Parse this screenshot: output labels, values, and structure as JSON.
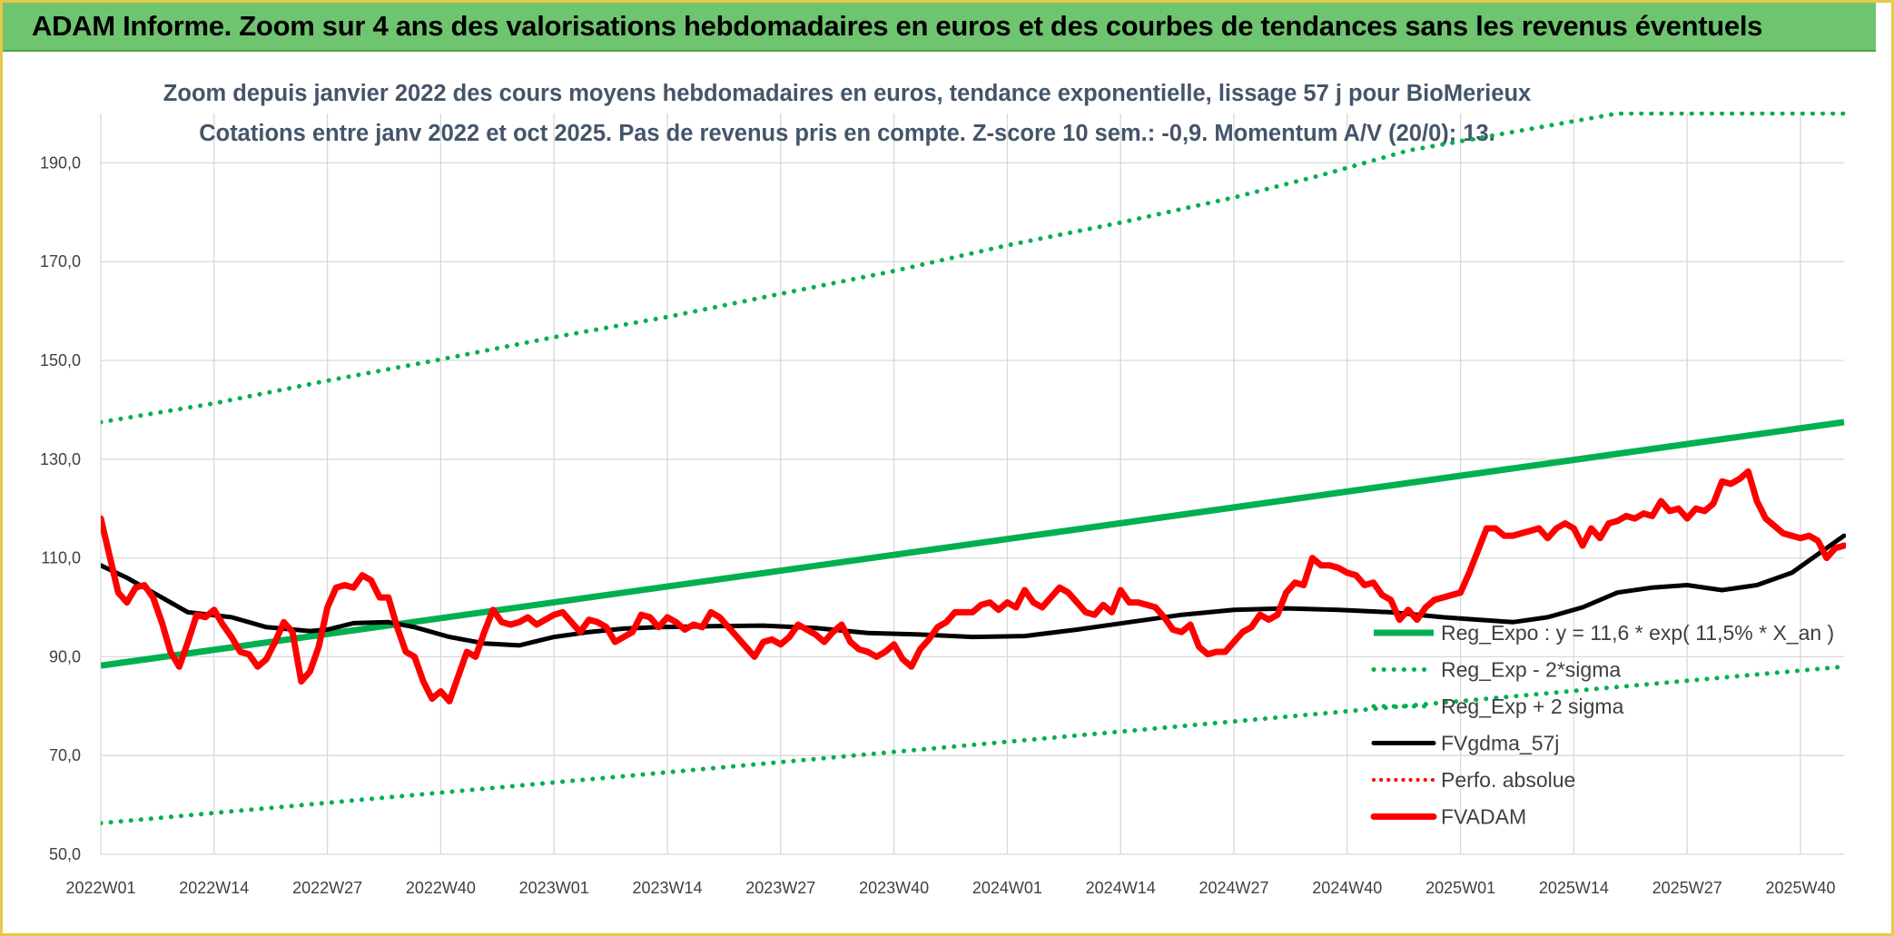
{
  "banner": {
    "title": "ADAM Informe. Zoom sur 4 ans des valorisations hebdomadaires en euros et des courbes de tendances sans les revenus éventuels"
  },
  "colors": {
    "banner": "#6fc46f",
    "reg_expo": "#00b050",
    "fvgdma": "#000000",
    "perfo": "#ff0000",
    "fvadam": "#ff0000",
    "grid": "#d9d9d9"
  },
  "chart_data": {
    "type": "line",
    "title": "Zoom depuis janvier 2022 des cours moyens hebdomadaires en euros, tendance exponentielle, lissage 57 j pour BioMerieux",
    "subtitle": "Cotations entre janv 2022 et oct 2025. Pas de revenus pris en compte. Z-score 10 sem.: -0,9. Momentum A/V (20/0): 13.",
    "ylim": [
      50,
      200
    ],
    "y_ticks": [
      "50,0",
      "70,0",
      "90,0",
      "110,0",
      "130,0",
      "150,0",
      "170,0",
      "190,0"
    ],
    "x_tick_labels": [
      "2022W01",
      "2022W14",
      "2022W27",
      "2022W40",
      "2023W01",
      "2023W14",
      "2023W27",
      "2023W40",
      "2024W01",
      "2024W14",
      "2024W27",
      "2024W40",
      "2025W01",
      "2025W14",
      "2025W27",
      "2025W40"
    ],
    "x_tick_index": [
      0,
      13,
      26,
      39,
      52,
      65,
      78,
      91,
      104,
      117,
      130,
      143,
      156,
      169,
      182,
      195
    ],
    "n_weeks": 200,
    "legend_position": "right",
    "grid": true,
    "series": [
      {
        "name": "Reg_Expo : y = 11,6 * exp( 11,5% *  X_an )",
        "style": "solid",
        "points": [
          [
            0,
            88.2
          ],
          [
            200,
            137.5
          ]
        ]
      },
      {
        "name": "Reg_Exp - 2*sigma",
        "style": "dotted",
        "points": [
          [
            0,
            56.3
          ],
          [
            200,
            88.0
          ]
        ]
      },
      {
        "name": "Reg_Exp + 2 sigma",
        "style": "dotted",
        "points": [
          [
            0,
            137.5
          ],
          [
            13,
            141.3
          ],
          [
            26,
            145.9
          ],
          [
            39,
            150.2
          ],
          [
            52,
            154.7
          ],
          [
            65,
            158.8
          ],
          [
            78,
            163.5
          ],
          [
            91,
            168.1
          ],
          [
            104,
            173.3
          ],
          [
            117,
            177.9
          ],
          [
            130,
            183.0
          ],
          [
            140,
            187.5
          ],
          [
            150,
            192.5
          ],
          [
            174,
            200
          ],
          [
            200,
            200
          ]
        ]
      },
      {
        "name": "FVgdma_57j",
        "style": "solid",
        "points": [
          [
            0,
            108.5
          ],
          [
            3,
            106
          ],
          [
            6,
            103
          ],
          [
            10,
            99
          ],
          [
            15,
            98
          ],
          [
            19,
            96
          ],
          [
            24,
            95.2
          ],
          [
            26,
            95.5
          ],
          [
            29,
            96.8
          ],
          [
            33,
            97
          ],
          [
            36,
            96
          ],
          [
            40,
            94
          ],
          [
            44,
            92.7
          ],
          [
            48,
            92.3
          ],
          [
            52,
            94
          ],
          [
            56,
            95
          ],
          [
            60,
            95.7
          ],
          [
            64,
            96
          ],
          [
            70,
            96.2
          ],
          [
            76,
            96.3
          ],
          [
            82,
            95.8
          ],
          [
            88,
            94.8
          ],
          [
            94,
            94.5
          ],
          [
            100,
            94
          ],
          [
            106,
            94.2
          ],
          [
            112,
            95.5
          ],
          [
            118,
            97
          ],
          [
            124,
            98.5
          ],
          [
            130,
            99.5
          ],
          [
            136,
            99.8
          ],
          [
            142,
            99.5
          ],
          [
            148,
            99
          ],
          [
            154,
            98
          ],
          [
            158,
            97.5
          ],
          [
            162,
            97
          ],
          [
            166,
            98
          ],
          [
            170,
            100
          ],
          [
            174,
            103
          ],
          [
            178,
            104
          ],
          [
            182,
            104.5
          ],
          [
            186,
            103.5
          ],
          [
            190,
            104.5
          ],
          [
            194,
            107
          ],
          [
            198,
            112
          ],
          [
            200,
            114.5
          ]
        ]
      },
      {
        "name": "Perfo. absolue",
        "style": "dotted",
        "points": []
      },
      {
        "name": "FVADAM",
        "style": "solid",
        "points": [
          [
            0,
            118
          ],
          [
            2,
            103
          ],
          [
            3,
            101
          ],
          [
            4,
            104
          ],
          [
            5,
            104.5
          ],
          [
            6,
            102
          ],
          [
            7,
            97
          ],
          [
            8,
            91
          ],
          [
            9,
            88
          ],
          [
            10,
            93
          ],
          [
            11,
            98.5
          ],
          [
            12,
            98
          ],
          [
            13,
            99.5
          ],
          [
            14,
            96.5
          ],
          [
            15,
            94
          ],
          [
            16,
            91
          ],
          [
            17,
            90.5
          ],
          [
            18,
            88
          ],
          [
            19,
            89.5
          ],
          [
            20,
            93
          ],
          [
            21,
            97
          ],
          [
            22,
            95
          ],
          [
            23,
            85
          ],
          [
            24,
            87
          ],
          [
            25,
            92
          ],
          [
            26,
            100
          ],
          [
            27,
            104
          ],
          [
            28,
            104.5
          ],
          [
            29,
            104
          ],
          [
            30,
            106.5
          ],
          [
            31,
            105.5
          ],
          [
            32,
            102
          ],
          [
            33,
            102
          ],
          [
            34,
            96
          ],
          [
            35,
            91
          ],
          [
            36,
            90
          ],
          [
            37,
            85
          ],
          [
            38,
            81.5
          ],
          [
            39,
            83
          ],
          [
            40,
            81
          ],
          [
            41,
            86
          ],
          [
            42,
            91
          ],
          [
            43,
            90
          ],
          [
            44,
            95
          ],
          [
            45,
            99.5
          ],
          [
            46,
            97
          ],
          [
            47,
            96.5
          ],
          [
            48,
            97
          ],
          [
            49,
            98
          ],
          [
            50,
            96.5
          ],
          [
            51,
            97.5
          ],
          [
            52,
            98.5
          ],
          [
            53,
            99
          ],
          [
            54,
            97
          ],
          [
            55,
            95
          ],
          [
            56,
            97.5
          ],
          [
            57,
            97
          ],
          [
            58,
            96
          ],
          [
            59,
            93
          ],
          [
            60,
            94
          ],
          [
            61,
            95
          ],
          [
            62,
            98.5
          ],
          [
            63,
            98
          ],
          [
            64,
            96
          ],
          [
            65,
            98
          ],
          [
            66,
            97
          ],
          [
            67,
            95.5
          ],
          [
            68,
            96.5
          ],
          [
            69,
            96
          ],
          [
            70,
            99
          ],
          [
            71,
            98
          ],
          [
            72,
            96
          ],
          [
            73,
            94
          ],
          [
            74,
            92
          ],
          [
            75,
            90
          ],
          [
            76,
            93
          ],
          [
            77,
            93.5
          ],
          [
            78,
            92.5
          ],
          [
            79,
            94
          ],
          [
            80,
            96.5
          ],
          [
            81,
            95.5
          ],
          [
            82,
            94.5
          ],
          [
            83,
            93
          ],
          [
            84,
            95
          ],
          [
            85,
            96.5
          ],
          [
            86,
            93
          ],
          [
            87,
            91.5
          ],
          [
            88,
            91
          ],
          [
            89,
            90
          ],
          [
            90,
            91
          ],
          [
            91,
            92.5
          ],
          [
            92,
            89.5
          ],
          [
            93,
            88
          ],
          [
            94,
            91.5
          ],
          [
            95,
            93.5
          ],
          [
            96,
            96
          ],
          [
            97,
            97
          ],
          [
            98,
            99
          ],
          [
            99,
            99
          ],
          [
            100,
            99
          ],
          [
            101,
            100.5
          ],
          [
            102,
            101
          ],
          [
            103,
            99.5
          ],
          [
            104,
            101
          ],
          [
            105,
            100
          ],
          [
            106,
            103.5
          ],
          [
            107,
            101
          ],
          [
            108,
            100
          ],
          [
            109,
            102
          ],
          [
            110,
            104
          ],
          [
            111,
            103
          ],
          [
            112,
            101
          ],
          [
            113,
            99
          ],
          [
            114,
            98.5
          ],
          [
            115,
            100.5
          ],
          [
            116,
            99
          ],
          [
            117,
            103.5
          ],
          [
            118,
            101
          ],
          [
            119,
            101
          ],
          [
            120,
            100.5
          ],
          [
            121,
            100
          ],
          [
            122,
            98
          ],
          [
            123,
            95.5
          ],
          [
            124,
            95
          ],
          [
            125,
            96.5
          ],
          [
            126,
            92
          ],
          [
            127,
            90.5
          ],
          [
            128,
            91
          ],
          [
            129,
            91
          ],
          [
            130,
            93
          ],
          [
            131,
            95
          ],
          [
            132,
            96
          ],
          [
            133,
            98.5
          ],
          [
            134,
            97.5
          ],
          [
            135,
            98.5
          ],
          [
            136,
            103
          ],
          [
            137,
            105
          ],
          [
            138,
            104.5
          ],
          [
            139,
            110
          ],
          [
            140,
            108.5
          ],
          [
            141,
            108.5
          ],
          [
            142,
            108
          ],
          [
            143,
            107
          ],
          [
            144,
            106.5
          ],
          [
            145,
            104.5
          ],
          [
            146,
            105
          ],
          [
            147,
            102.5
          ],
          [
            148,
            101.5
          ],
          [
            149,
            97.5
          ],
          [
            150,
            99.5
          ],
          [
            151,
            97.5
          ],
          [
            152,
            100
          ],
          [
            153,
            101.5
          ],
          [
            154,
            102
          ],
          [
            155,
            102.5
          ],
          [
            156,
            103
          ],
          [
            157,
            107
          ],
          [
            158,
            111.5
          ],
          [
            159,
            116
          ],
          [
            160,
            116
          ],
          [
            161,
            114.5
          ],
          [
            162,
            114.5
          ],
          [
            163,
            115
          ],
          [
            164,
            115.5
          ],
          [
            165,
            116
          ],
          [
            166,
            114
          ],
          [
            167,
            116
          ],
          [
            168,
            117
          ],
          [
            169,
            116
          ],
          [
            170,
            112.5
          ],
          [
            171,
            116
          ],
          [
            172,
            114
          ],
          [
            173,
            117
          ],
          [
            174,
            117.5
          ],
          [
            175,
            118.5
          ],
          [
            176,
            118
          ],
          [
            177,
            119
          ],
          [
            178,
            118.5
          ],
          [
            179,
            121.5
          ],
          [
            180,
            119.5
          ],
          [
            181,
            120
          ],
          [
            182,
            118
          ],
          [
            183,
            120
          ],
          [
            184,
            119.5
          ],
          [
            185,
            121
          ],
          [
            186,
            125.5
          ],
          [
            187,
            125
          ],
          [
            188,
            126
          ],
          [
            189,
            127.5
          ],
          [
            190,
            121.5
          ],
          [
            191,
            118
          ],
          [
            192,
            116.5
          ],
          [
            193,
            115
          ],
          [
            194,
            114.5
          ],
          [
            195,
            114
          ],
          [
            196,
            114.5
          ],
          [
            197,
            113.5
          ],
          [
            198,
            110
          ],
          [
            199,
            112
          ],
          [
            200,
            112.5
          ]
        ]
      }
    ]
  }
}
